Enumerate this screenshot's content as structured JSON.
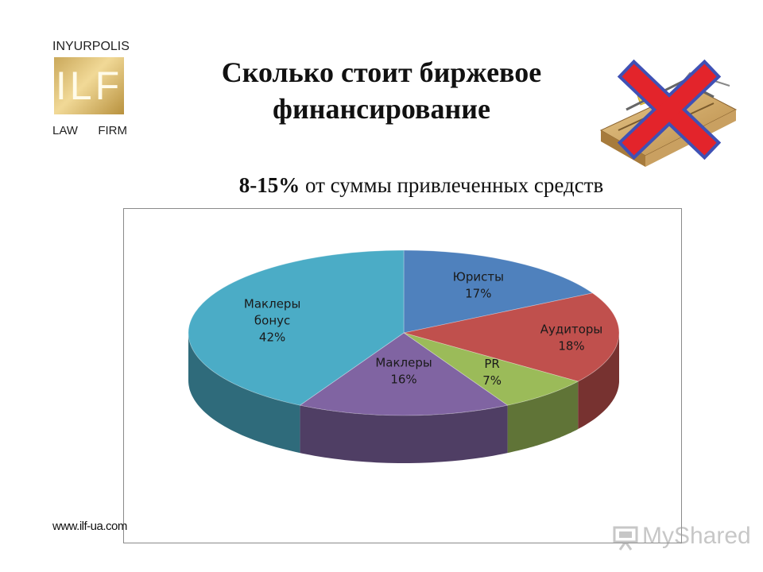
{
  "logo": {
    "top_text": "INYURPOLIS",
    "mark": "ILF",
    "bottom_left": "LAW",
    "bottom_right": "FIRM"
  },
  "title_line1": "Сколько стоит биржевое",
  "title_line2": "финансирование",
  "subtitle_bold": "8-15%",
  "subtitle_rest": " от суммы привлеченных средств",
  "website": "www.ilf-ua.com",
  "watermark": "MyShared",
  "colors": {
    "lawyers": "#4f81bd",
    "auditors": "#c0504d",
    "pr": "#9bbb59",
    "brokers": "#8064a2",
    "brokers_bonus": "#4bacc6"
  },
  "chart_data": {
    "type": "pie",
    "style": "3d",
    "title": "",
    "slices": [
      {
        "label": "Юристы",
        "value": 17,
        "display": "17%",
        "color": "#4f81bd"
      },
      {
        "label": "Аудиторы",
        "value": 18,
        "display": "18%",
        "color": "#c0504d"
      },
      {
        "label": "PR",
        "value": 7,
        "display": "7%",
        "color": "#9bbb59"
      },
      {
        "label": "Маклеры",
        "value": 16,
        "display": "16%",
        "color": "#8064a2"
      },
      {
        "label": "Маклеры бонус",
        "value": 42,
        "display": "42%",
        "color": "#4bacc6"
      }
    ]
  }
}
